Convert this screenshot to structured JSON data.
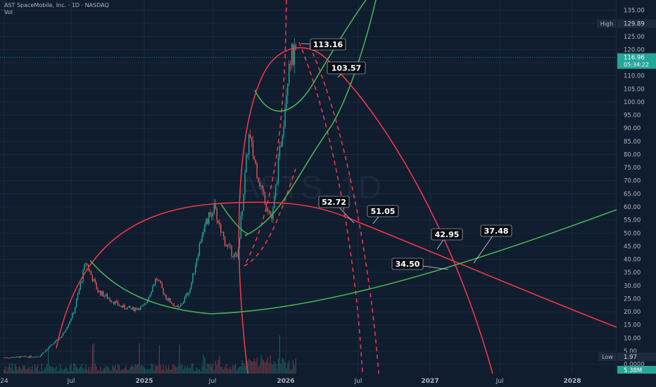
{
  "header": {
    "title": "AST SpaceMobile, Inc. · 1D · NASDAQ",
    "subtitle": "Vol"
  },
  "watermark": "ASTS, 1D",
  "colors": {
    "background": "#0f1d2f",
    "grid": "#1b2a40",
    "text": "#b2b5be",
    "red": "#f23645",
    "green": "#4caf50",
    "up": "#26a69a",
    "down": "#ef5350",
    "price_badge": "#26a69a",
    "label_bg": "#0a0f16"
  },
  "chart_data": {
    "type": "candlestick",
    "title": "AST SpaceMobile, Inc. · 1D · NASDAQ",
    "x_ticks": [
      "24",
      "Jul",
      "2025",
      "Jul",
      "2026",
      "Jul",
      "2027",
      "Jul",
      "2028"
    ],
    "y_ticks": [
      "135.00",
      "130.00",
      "125.00",
      "120.00",
      "115.00",
      "110.00",
      "105.00",
      "100.00",
      "95.00",
      "90.00",
      "85.00",
      "80.00",
      "75.00",
      "70.00",
      "65.00",
      "60.00",
      "55.00",
      "50.00",
      "45.00",
      "40.00",
      "35.00",
      "30.00",
      "25.00",
      "20.00",
      "15.00",
      "10.00",
      "5.00",
      "0.0000"
    ],
    "ylim": [
      0,
      135
    ],
    "grid": true,
    "price_labels": {
      "high": {
        "label": "High",
        "value": "129.89"
      },
      "last": {
        "value": "116.96",
        "countdown": "05:34:22"
      },
      "low": {
        "label": "Low",
        "value": "1.97"
      },
      "volume": {
        "value": "5.38M"
      }
    },
    "annotations": [
      "113.16",
      "103.57",
      "52.72",
      "51.05",
      "42.95",
      "37.48",
      "34.50"
    ],
    "price_path": [
      {
        "date": "2024-01",
        "price": 2.5
      },
      {
        "date": "2024-04",
        "price": 3
      },
      {
        "date": "2024-05",
        "price": 7
      },
      {
        "date": "2024-06",
        "price": 11
      },
      {
        "date": "2024-07",
        "price": 20
      },
      {
        "date": "2024-08",
        "price": 39
      },
      {
        "date": "2024-09",
        "price": 28
      },
      {
        "date": "2024-10",
        "price": 25
      },
      {
        "date": "2024-11",
        "price": 22
      },
      {
        "date": "2024-12",
        "price": 21
      },
      {
        "date": "2025-01",
        "price": 22
      },
      {
        "date": "2025-02",
        "price": 33
      },
      {
        "date": "2025-03",
        "price": 25
      },
      {
        "date": "2025-04",
        "price": 21
      },
      {
        "date": "2025-05",
        "price": 29
      },
      {
        "date": "2025-06",
        "price": 50
      },
      {
        "date": "2025-07",
        "price": 60
      },
      {
        "date": "2025-08",
        "price": 46
      },
      {
        "date": "2025-09",
        "price": 40
      },
      {
        "date": "2025-10",
        "price": 87
      },
      {
        "date": "2025-11",
        "price": 68
      },
      {
        "date": "2025-12",
        "price": 55
      },
      {
        "date": "2026-01",
        "price": 95
      },
      {
        "date": "2026-01-15",
        "price": 118
      },
      {
        "date": "2026-02",
        "price": 116.96
      }
    ]
  }
}
